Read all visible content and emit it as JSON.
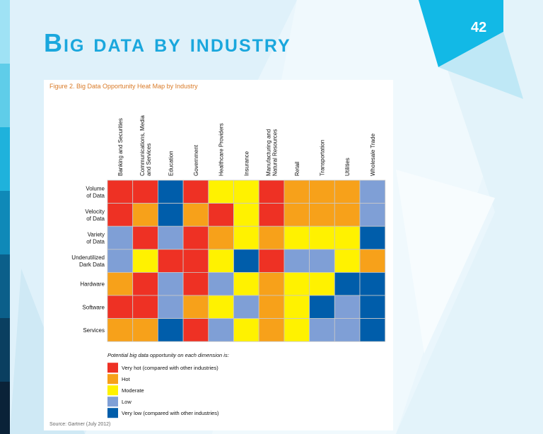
{
  "slide": {
    "title": "Big data by industry",
    "page_number": "42",
    "accent_color": "#12b9e6"
  },
  "figure": {
    "title": "Figure 2. Big Data Opportunity Heat Map by Industry",
    "source": "Source: Gartner (July 2012)"
  },
  "chart_data": {
    "type": "heatmap",
    "title": "Figure 2. Big Data Opportunity Heat Map by Industry",
    "columns": [
      "Banking and Securities",
      "Communications, Media and Services",
      "Education",
      "Government",
      "Healthcare Providers",
      "Insurance",
      "Manufacturing and Natural Resources",
      "Retail",
      "Transportation",
      "Utilities",
      "Wholesale Trade"
    ],
    "rows": [
      "Volume of Data",
      "Velocity of Data",
      "Variety of Data",
      "Underutilized Dark Data",
      "Hardware",
      "Software",
      "Services"
    ],
    "scale": [
      "Very hot",
      "Hot",
      "Moderate",
      "Low",
      "Very low"
    ],
    "values": [
      [
        "Very hot",
        "Very hot",
        "Very low",
        "Very hot",
        "Moderate",
        "Moderate",
        "Very hot",
        "Hot",
        "Hot",
        "Hot",
        "Low"
      ],
      [
        "Very hot",
        "Hot",
        "Very low",
        "Hot",
        "Very hot",
        "Moderate",
        "Very hot",
        "Hot",
        "Hot",
        "Hot",
        "Low"
      ],
      [
        "Low",
        "Very hot",
        "Low",
        "Very hot",
        "Hot",
        "Moderate",
        "Hot",
        "Moderate",
        "Moderate",
        "Moderate",
        "Very low"
      ],
      [
        "Low",
        "Moderate",
        "Very hot",
        "Very hot",
        "Moderate",
        "Very low",
        "Very hot",
        "Low",
        "Low",
        "Moderate",
        "Hot"
      ],
      [
        "Hot",
        "Very hot",
        "Low",
        "Very hot",
        "Low",
        "Moderate",
        "Hot",
        "Moderate",
        "Moderate",
        "Very low",
        "Very low"
      ],
      [
        "Very hot",
        "Very hot",
        "Low",
        "Hot",
        "Moderate",
        "Low",
        "Hot",
        "Moderate",
        "Very low",
        "Low",
        "Very low"
      ],
      [
        "Hot",
        "Hot",
        "Very low",
        "Very hot",
        "Low",
        "Moderate",
        "Hot",
        "Moderate",
        "Low",
        "Low",
        "Very low"
      ]
    ],
    "colors": {
      "Very hot": "#ee3124",
      "Hot": "#f7a11a",
      "Moderate": "#fff200",
      "Low": "#7f9fd6",
      "Very low": "#005daa"
    },
    "legend": {
      "title": "Potential big data opportunity on each dimension is:",
      "items": [
        {
          "key": "Very hot",
          "label": "Very hot (compared with other industries)"
        },
        {
          "key": "Hot",
          "label": "Hot"
        },
        {
          "key": "Moderate",
          "label": "Moderate"
        },
        {
          "key": "Low",
          "label": "Low"
        },
        {
          "key": "Very low",
          "label": "Very low (compared with other industries)"
        }
      ],
      "placement": "bottom"
    }
  }
}
